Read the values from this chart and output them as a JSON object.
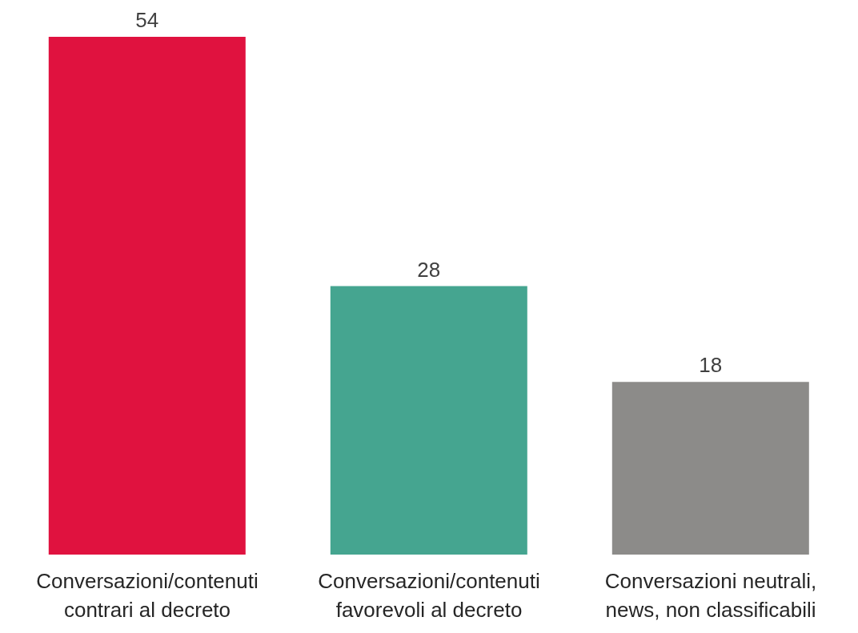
{
  "chart_data": {
    "type": "bar",
    "categories": [
      "Conversazioni/contenuti contrari al decreto",
      "Conversazioni/contenuti favorevoli al decreto",
      "Conversazioni neutrali, news, non classificabili"
    ],
    "values": [
      54,
      28,
      18
    ],
    "colors": [
      "#e0123f",
      "#45a590",
      "#8c8b89"
    ],
    "data_labels": true,
    "grid": false,
    "legend": false
  }
}
